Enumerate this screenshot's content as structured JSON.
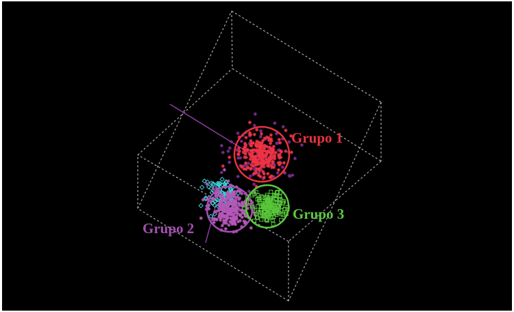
{
  "chart_data": {
    "type": "scatter",
    "title": "",
    "projection": "3d",
    "background": "#000000",
    "grid": false,
    "bounding_box": "dashed grey wireframe cube",
    "groups": [
      {
        "label": "Grupo 1",
        "color": "#ee3344",
        "circle_color": "#e8343c",
        "marker": "asterisk",
        "center": [
          0.42,
          0.62,
          0.35
        ],
        "spread": 0.05,
        "points": 240
      },
      {
        "label": "Grupo 2",
        "color": "#b557b8",
        "circle_color": "#a64fb0",
        "marker": "asterisk",
        "center": [
          0.25,
          0.22,
          0.4
        ],
        "spread": 0.05,
        "points": 260
      },
      {
        "label": "Grupo 3",
        "color": "#58c83a",
        "circle_color": "#5fc844",
        "marker": "square",
        "center": [
          0.52,
          0.3,
          0.45
        ],
        "spread": 0.04,
        "points": 150
      }
    ],
    "extra_series": [
      {
        "color": "#7a2d8f",
        "marker": "asterisk",
        "note": "overlapping purple points near group 1",
        "points": 80
      },
      {
        "color": "#3fd0d8",
        "marker": "diamond",
        "note": "cyan points overlapping group 2",
        "points": 90
      }
    ]
  }
}
